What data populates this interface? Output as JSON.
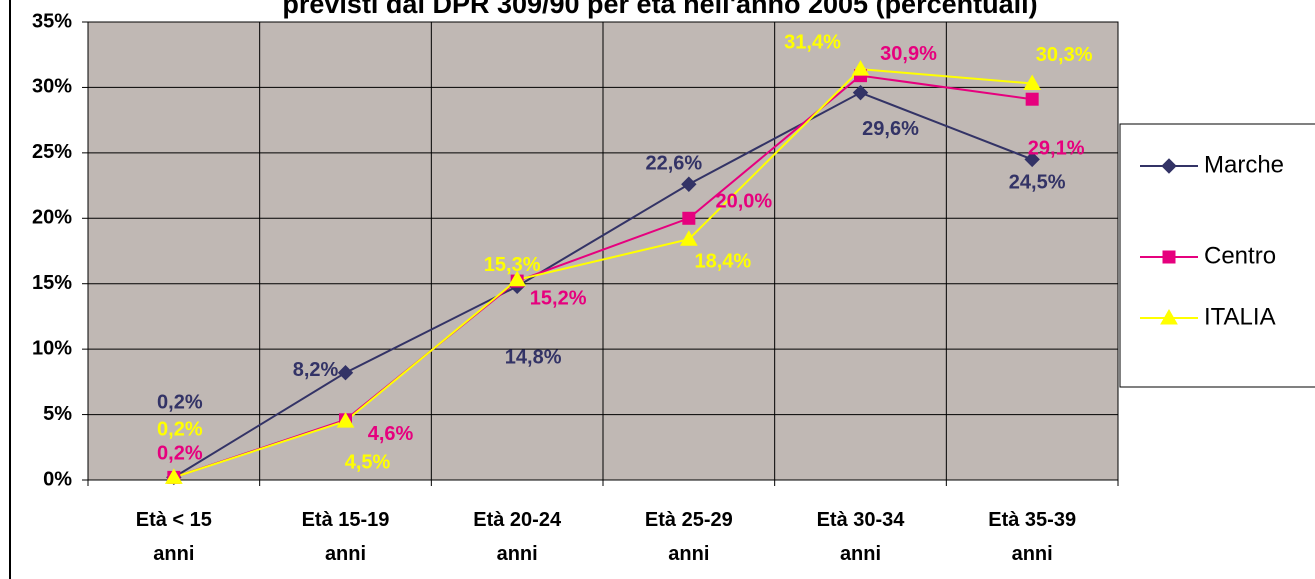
{
  "chart_data": {
    "type": "line",
    "title": "previsti dal DPR 309/90 per età nell'anno 2005 (percentuali)",
    "categories": [
      "Età < 15 anni",
      "Età 15-19 anni",
      "Età 20-24 anni",
      "Età 25-29 anni",
      "Età 30-34 anni",
      "Età 35-39 anni"
    ],
    "series": [
      {
        "name": "Marche",
        "color": "#333366",
        "marker": "diamond",
        "values": [
          0.2,
          8.2,
          14.8,
          22.6,
          29.6,
          24.5
        ],
        "value_labels": [
          "0,2%",
          "8,2%",
          "14,8%",
          "22,6%",
          "29,6%",
          "24,5%"
        ]
      },
      {
        "name": "Centro",
        "color": "#e6007e",
        "marker": "square",
        "values": [
          0.2,
          4.6,
          15.2,
          20.0,
          30.9,
          29.1
        ],
        "value_labels": [
          "0,2%",
          "4,6%",
          "15,2%",
          "20,0%",
          "30,9%",
          "29,1%"
        ]
      },
      {
        "name": "ITALIA",
        "color": "#ffff00",
        "marker": "triangle",
        "values": [
          0.2,
          4.5,
          15.3,
          18.4,
          31.4,
          30.3
        ],
        "value_labels": [
          "0,2%",
          "4,5%",
          "15,3%",
          "18,4%",
          "31,4%",
          "30,3%"
        ]
      }
    ],
    "ylim": [
      0,
      35
    ],
    "yticks": [
      {
        "value": 0,
        "label": "0%"
      },
      {
        "value": 5,
        "label": "5%"
      },
      {
        "value": 10,
        "label": "10%"
      },
      {
        "value": 15,
        "label": "15%"
      },
      {
        "value": 20,
        "label": "20%"
      },
      {
        "value": 25,
        "label": "25%"
      },
      {
        "value": 30,
        "label": "30%"
      },
      {
        "value": 35,
        "label": "35%"
      }
    ],
    "grid": true,
    "legend": "right",
    "plot_background": "#c0b8b4"
  }
}
